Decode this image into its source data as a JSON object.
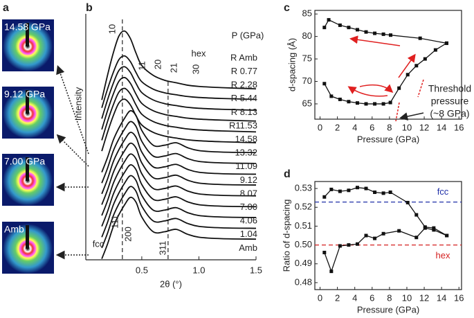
{
  "chart_data": [
    {
      "type": "image",
      "panel": "a",
      "labels": [
        "14.58 GPa",
        "9.12 GPa",
        "7.00 GPa",
        "Amb"
      ]
    },
    {
      "type": "line",
      "panel": "b",
      "xlabel": "2θ (°)",
      "ylabel": "Intensity",
      "legend_title": "P (GPa)",
      "xlim": [
        0.01,
        1.5
      ],
      "xticks": [
        0.5,
        {
          "value": 1.0,
          "label": "1.0"
        },
        1.5
      ],
      "ylim": [
        0,
        100
      ],
      "x": [
        0.15,
        0.2,
        0.25,
        0.3,
        0.35,
        0.4,
        0.45,
        0.5,
        0.6,
        0.7,
        0.8,
        0.9,
        1.0,
        1.2,
        1.5
      ],
      "reference_lines": [
        0.33,
        0.73
      ],
      "annotations": [
        "10",
        "11",
        "20",
        "21",
        "30",
        "hex",
        "111",
        "200",
        "311",
        "fcc"
      ],
      "series": [
        {
          "name": "R Amb",
          "color": "#111111",
          "values": [
            65,
            75,
            84,
            91,
            93,
            90,
            84,
            79,
            75,
            73,
            72,
            71,
            70.5,
            70,
            69.5
          ]
        },
        {
          "name": "R 0.77",
          "color": "#111111",
          "values": [
            61.8,
            69.4,
            76.1,
            81.4,
            82.9,
            80.6,
            76.1,
            72.4,
            69.4,
            67.9,
            67.1,
            66.4,
            66,
            65.6,
            65.2
          ]
        },
        {
          "name": "R 2.28",
          "color": "#111111",
          "values": [
            57.4,
            65,
            71.7,
            77,
            78.5,
            76.2,
            71.7,
            68,
            65,
            63.5,
            62.7,
            62,
            61.6,
            61.2,
            60.8
          ]
        },
        {
          "name": "R 5.44",
          "color": "#111111",
          "values": [
            53,
            60.6,
            67.3,
            72.6,
            74.1,
            71.8,
            67.3,
            63.6,
            60.6,
            59.1,
            58.3,
            57.6,
            57.2,
            56.8,
            56.4
          ]
        },
        {
          "name": "R 8.13",
          "color": "#111111",
          "values": [
            48.6,
            56.2,
            62.9,
            68.2,
            69.7,
            67.4,
            62.9,
            59.2,
            56.2,
            54.7,
            53.9,
            53.2,
            52.8,
            52.4,
            52
          ]
        },
        {
          "name": "R11.53",
          "color": "#111111",
          "values": [
            44.2,
            51.8,
            58.5,
            63.8,
            65.3,
            63,
            58.5,
            54.8,
            51.8,
            50.3,
            49.5,
            48.8,
            48.4,
            48,
            47.6
          ]
        },
        {
          "name": "14.58",
          "color": "#111111",
          "values": [
            35.6,
            41.6,
            48.6,
            53.6,
            57.6,
            60.6,
            58.6,
            52.6,
            46.6,
            46.6,
            47.6,
            45.6,
            44.4,
            43.8,
            43.6
          ]
        },
        {
          "name": "13.32",
          "color": "#111111",
          "values": [
            31.2,
            37.2,
            44.2,
            49.2,
            53.2,
            56.2,
            54.2,
            48.2,
            42.2,
            42.2,
            43.2,
            41.2,
            40,
            39.4,
            39.2
          ]
        },
        {
          "name": "11.09",
          "color": "#111111",
          "values": [
            26.8,
            32.8,
            39.8,
            44.8,
            48.8,
            51.8,
            49.8,
            43.8,
            37.8,
            37.8,
            38.8,
            36.8,
            35.6,
            35,
            34.8
          ]
        },
        {
          "name": "9.12",
          "color": "#111111",
          "values": [
            22.4,
            28.4,
            35.4,
            40.4,
            44.4,
            47.4,
            45.4,
            39.4,
            33.4,
            33.4,
            34.4,
            32.4,
            31.2,
            30.6,
            30.4
          ]
        },
        {
          "name": "8.07",
          "color": "#111111",
          "values": [
            18,
            24,
            31,
            36,
            40,
            43,
            41,
            35,
            29,
            29,
            30,
            28,
            26.8,
            26.2,
            26
          ]
        },
        {
          "name": "7.00",
          "color": "#111111",
          "values": [
            13.6,
            19.6,
            26.6,
            31.6,
            35.6,
            38.6,
            36.6,
            30.6,
            24.6,
            24.6,
            25.6,
            23.6,
            22.4,
            21.8,
            21.6
          ]
        },
        {
          "name": "4.06",
          "color": "#111111",
          "values": [
            9.2,
            15.2,
            22.2,
            27.2,
            31.2,
            34.2,
            32.2,
            26.2,
            20.2,
            20.2,
            21.2,
            19.2,
            18,
            17.4,
            17.2
          ]
        },
        {
          "name": "1.04",
          "color": "#111111",
          "values": [
            4.8,
            10.8,
            17.8,
            22.8,
            26.8,
            29.8,
            27.8,
            21.8,
            15.8,
            15.8,
            16.8,
            14.8,
            13.6,
            13,
            12.8
          ]
        },
        {
          "name": "Amb",
          "color": "#111111",
          "values": [
            0.4,
            6.4,
            13.4,
            18.4,
            22.4,
            25.4,
            23.4,
            17.4,
            11.4,
            11.4,
            12.4,
            10.4,
            9.2,
            8.6,
            8.4
          ]
        }
      ]
    },
    {
      "type": "scatter-line",
      "panel": "c",
      "xlabel": "Pressure (GPa)",
      "ylabel": "d-spacing (Å)",
      "xlim": [
        -0.6,
        16.3
      ],
      "xticks": [
        0,
        2,
        4,
        6,
        8,
        10,
        12,
        14,
        16
      ],
      "ylim": [
        61.6,
        85.8
      ],
      "yticks": [
        65,
        70,
        75,
        80,
        85
      ],
      "annotation": [
        "Threshold",
        "pressure",
        "(~8 GPa)"
      ],
      "series": [
        {
          "color": "#111111",
          "x": [
            0.5,
            1.3,
            2.3,
            3.3,
            4.3,
            5.3,
            6.3,
            7.3,
            8.1,
            9.1,
            10.1,
            11.1,
            12.1,
            13.3,
            14.58
          ],
          "values": [
            69.5,
            66.7,
            66,
            65.5,
            65.2,
            65,
            65,
            65,
            65.3,
            68.5,
            71.5,
            73.5,
            75,
            77,
            78.5
          ]
        },
        {
          "color": "#111111",
          "x": [
            14.58,
            11.53,
            8.13,
            7.3,
            6.3,
            5.3,
            4.3,
            3.3,
            2.3,
            1.0,
            0.5
          ],
          "values": [
            78.5,
            79.6,
            80.3,
            80.5,
            80.7,
            81,
            81.5,
            82,
            82.5,
            83.7,
            82
          ]
        }
      ]
    },
    {
      "type": "scatter-line",
      "panel": "d",
      "xlabel": "Pressure (GPa)",
      "ylabel": "Ratio of d-spacing",
      "xlim": [
        -0.6,
        16.3
      ],
      "xticks": [
        0,
        2,
        4,
        6,
        8,
        10,
        12,
        14,
        16
      ],
      "ylim": [
        0.4763,
        0.5337
      ],
      "yticks": [
        0.48,
        0.49,
        {
          "value": 0.5,
          "label": "0.50"
        },
        0.51,
        0.52,
        0.53
      ],
      "reference_lines": [
        {
          "value": 0.5228,
          "label": "fcc",
          "color": "#1f2fa8"
        },
        {
          "value": 0.5,
          "label": "hex",
          "color": "#d42020"
        }
      ],
      "series": [
        {
          "color": "#111111",
          "x": [
            0.5,
            1.3,
            2.3,
            3.3,
            4.3,
            5.3,
            6.3,
            7.3,
            8.1,
            10.1,
            11.1,
            12.1,
            13.1,
            14.6
          ],
          "values": [
            0.5255,
            0.5295,
            0.5285,
            0.529,
            0.5305,
            0.53,
            0.528,
            0.5275,
            0.528,
            0.5225,
            0.516,
            0.5095,
            0.509,
            0.505
          ]
        },
        {
          "color": "#111111",
          "x": [
            0.5,
            1.3,
            2.3,
            3.3,
            4.3,
            5.3,
            6.3,
            7.3,
            9.1,
            11.1,
            12.1,
            13.1,
            14.6
          ],
          "values": [
            0.496,
            0.486,
            0.4995,
            0.5,
            0.5005,
            0.505,
            0.5035,
            0.506,
            0.5075,
            0.504,
            0.509,
            0.508,
            0.505
          ]
        }
      ]
    }
  ]
}
